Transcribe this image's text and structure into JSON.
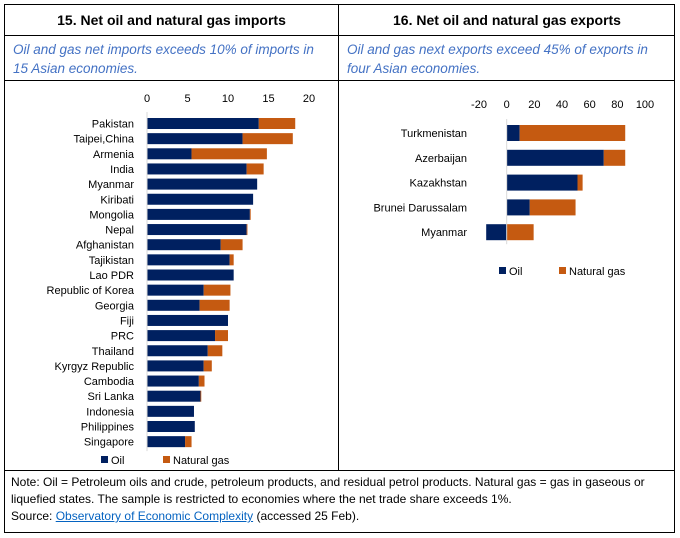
{
  "colors": {
    "oil": "#002060",
    "gas": "#c55a11"
  },
  "chart_data": [
    {
      "type": "bar",
      "orientation": "horizontal",
      "stacked": true,
      "title": "15. Net oil and natural gas imports",
      "subtitle": "Oil and gas net imports exceeds 10% of imports in 15 Asian economies.",
      "categories": [
        "Pakistan",
        "Taipei,China",
        "Armenia",
        "India",
        "Myanmar",
        "Kiribati",
        "Mongolia",
        "Nepal",
        "Afghanistan",
        "Tajikistan",
        "Lao PDR",
        "Republic of Korea",
        "Georgia",
        "Fiji",
        "PRC",
        "Thailand",
        "Kyrgyz Republic",
        "Cambodia",
        "Sri Lanka",
        "Indonesia",
        "Philippines",
        "Singapore"
      ],
      "series": [
        {
          "name": "Oil",
          "values": [
            13.8,
            11.8,
            5.5,
            12.3,
            13.6,
            13.1,
            12.7,
            12.3,
            9.1,
            10.2,
            10.7,
            7.0,
            6.5,
            10.0,
            8.4,
            7.5,
            7.0,
            6.4,
            6.6,
            5.8,
            5.9,
            4.7
          ]
        },
        {
          "name": "Natural gas",
          "values": [
            4.5,
            6.2,
            9.3,
            2.1,
            0,
            0,
            0.1,
            0.1,
            2.7,
            0.5,
            0,
            3.3,
            3.7,
            0,
            1.6,
            1.8,
            1.0,
            0.7,
            0.1,
            0,
            0,
            0.8
          ]
        }
      ],
      "xlim": [
        0,
        20
      ],
      "xticks": [
        "0",
        "5",
        "10",
        "15",
        "20"
      ],
      "legend": "bottom"
    },
    {
      "type": "bar",
      "orientation": "horizontal",
      "stacked": true,
      "title": "16. Net oil and natural gas exports",
      "subtitle": "Oil and gas next exports exceed 45% of exports in four Asian economies.",
      "categories": [
        "Turkmenistan",
        "Azerbaijan",
        "Kazakhstan",
        "Brunei Darussalam",
        "Myanmar"
      ],
      "series": [
        {
          "name": "Oil",
          "values": [
            9.4,
            70.2,
            51.2,
            16.7,
            -14.8
          ]
        },
        {
          "name": "Natural gas",
          "values": [
            76.3,
            15.5,
            3.7,
            33.1,
            19.5
          ]
        }
      ],
      "xlim": [
        -20,
        100
      ],
      "xticks": [
        "-20",
        "0",
        "20",
        "40",
        "60",
        "80",
        "100"
      ],
      "legend": "bottom"
    }
  ],
  "note": {
    "text": "Note: Oil = Petroleum oils and crude, petroleum products, and residual petrol products. Natural gas = gas in gaseous or liquefied states. The sample is restricted to economies where the net trade share exceeds 1%.",
    "source_prefix": "Source: ",
    "source_link": "Observatory of Economic Complexity",
    "source_suffix": " (accessed 25 Feb)."
  }
}
